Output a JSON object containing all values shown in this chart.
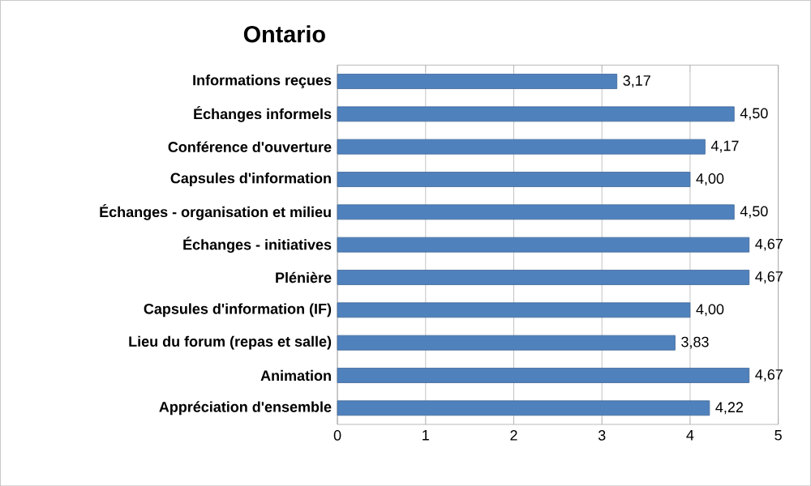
{
  "chart_data": {
    "type": "bar",
    "orientation": "horizontal",
    "title": "Ontario",
    "categories": [
      "Informations reçues",
      "Échanges informels",
      "Conférence d'ouverture",
      "Capsules d'information",
      "Échanges - organisation et milieu",
      "Échanges - initiatives",
      "Plénière",
      "Capsules d'information (IF)",
      "Lieu du forum (repas et salle)",
      "Animation",
      "Appréciation d'ensemble"
    ],
    "values": [
      3.17,
      4.5,
      4.17,
      4.0,
      4.5,
      4.67,
      4.67,
      4.0,
      3.83,
      4.67,
      4.22
    ],
    "value_labels": [
      "3,17",
      "4,50",
      "4,17",
      "4,00",
      "4,50",
      "4,67",
      "4,67",
      "4,00",
      "3,83",
      "4,67",
      "4,22"
    ],
    "color": "#4f81bd",
    "xlim": [
      0,
      5
    ],
    "xticks": [
      0,
      1,
      2,
      3,
      4,
      5
    ],
    "grid": "x"
  }
}
